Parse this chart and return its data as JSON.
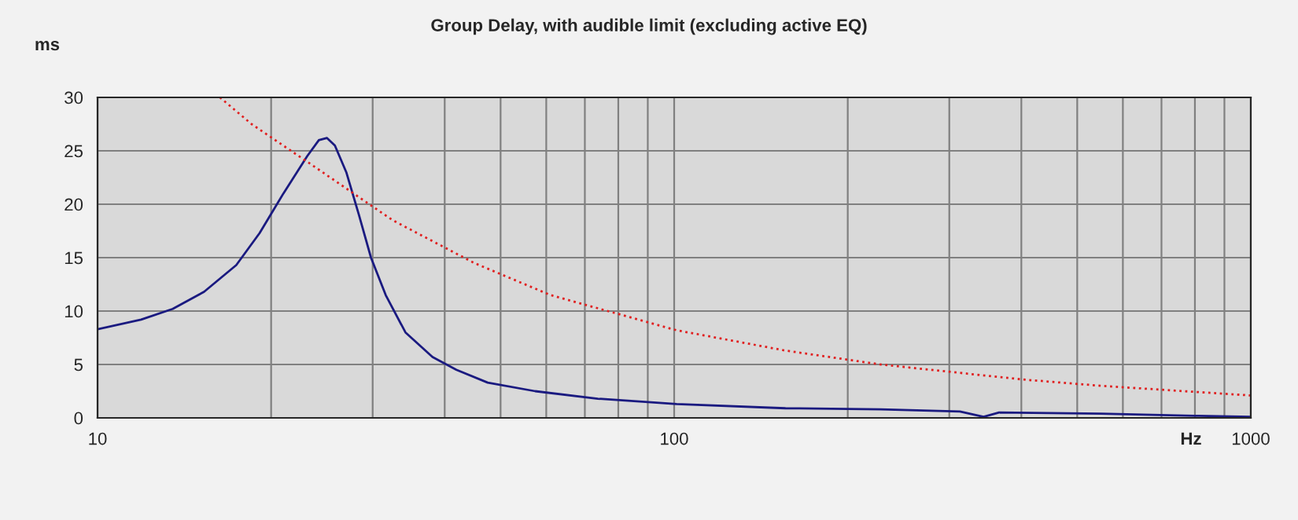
{
  "chart_data": {
    "type": "line",
    "title": "Group Delay, with audible limit (excluding active EQ)",
    "xlabel": "Hz",
    "ylabel": "ms",
    "log": "x",
    "grid": true,
    "legend": false,
    "xlim": [
      10,
      1000
    ],
    "xticks": [
      10,
      {
        "value": 20,
        "label": null
      },
      {
        "value": 30,
        "label": null
      },
      {
        "value": 40,
        "label": null
      },
      {
        "value": 50,
        "label": null
      },
      {
        "value": 60,
        "label": null
      },
      {
        "value": 70,
        "label": null
      },
      {
        "value": 80,
        "label": null
      },
      {
        "value": 90,
        "label": null
      },
      100,
      {
        "value": 200,
        "label": null
      },
      {
        "value": 300,
        "label": null
      },
      {
        "value": 400,
        "label": null
      },
      {
        "value": 500,
        "label": null
      },
      {
        "value": 600,
        "label": null
      },
      {
        "value": 700,
        "label": null
      },
      {
        "value": 800,
        "label": null
      },
      {
        "value": 900,
        "label": null
      },
      1000
    ],
    "ylim": [
      0,
      30
    ],
    "yticks": [
      0,
      5,
      10,
      15,
      20,
      25,
      30
    ],
    "series": [
      {
        "color": "#1a1a80",
        "line_style": "solid",
        "x": [
          10,
          11.9,
          13.5,
          15.3,
          17.4,
          19.1,
          21,
          23.1,
          24.2,
          25,
          25.8,
          27,
          28.4,
          29.8,
          31.6,
          34.2,
          38.1,
          41.9,
          47.5,
          57.4,
          73.7,
          101,
          156,
          228,
          313,
          344,
          366,
          550,
          800,
          1000
        ],
        "values": [
          8.3,
          9.2,
          10.2,
          11.8,
          14.3,
          17.3,
          21,
          24.5,
          26,
          26.2,
          25.5,
          23,
          19,
          15,
          11.5,
          8,
          5.7,
          4.5,
          3.3,
          2.5,
          1.8,
          1.3,
          0.9,
          0.8,
          0.6,
          0.1,
          0.5,
          0.4,
          0.2,
          0.1
        ]
      },
      {
        "color": "#e02020",
        "line_style": "dotted",
        "x": [
          16.3,
          18.5,
          23.8,
          32.5,
          45,
          61,
          101,
          156,
          228,
          401,
          550,
          1000
        ],
        "values": [
          30,
          27.5,
          23.5,
          18.5,
          14.5,
          11.5,
          8.2,
          6.3,
          5,
          3.6,
          3,
          2.1
        ]
      }
    ]
  }
}
